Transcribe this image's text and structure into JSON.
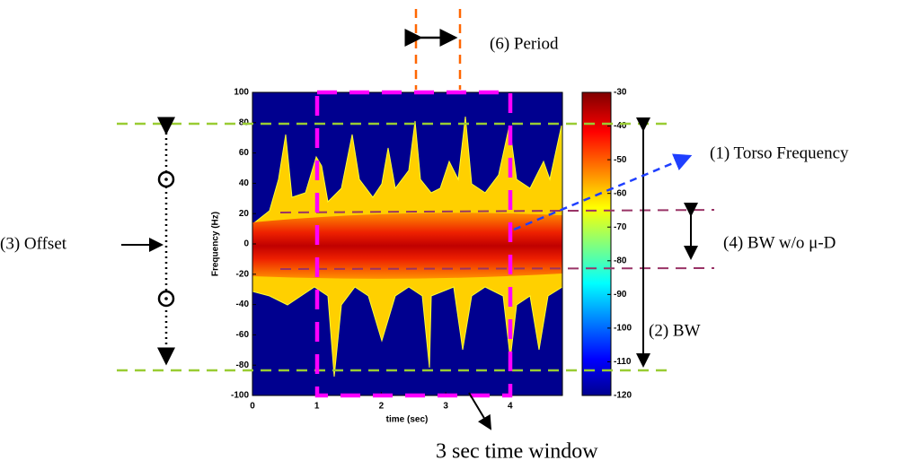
{
  "figure": {
    "y_axis": {
      "label": "Frequency (Hz)",
      "ticks": [
        100,
        80,
        60,
        40,
        20,
        0,
        -20,
        -40,
        -60,
        -80,
        -100
      ]
    },
    "x_axis": {
      "label": "time (sec)",
      "ticks": [
        0,
        1,
        2,
        3,
        4
      ]
    },
    "colorbar": {
      "ticks": [
        -30,
        -40,
        -50,
        -60,
        -70,
        -80,
        -90,
        -100,
        -110,
        -120
      ]
    },
    "annotations": {
      "period": "(6) Period",
      "torso": "(1) Torso Frequency",
      "bw_no_md": "(4) BW w/o μ-D",
      "bw": "(2) BW",
      "offset": "(3) Offset",
      "window": "3 sec time window"
    }
  }
}
